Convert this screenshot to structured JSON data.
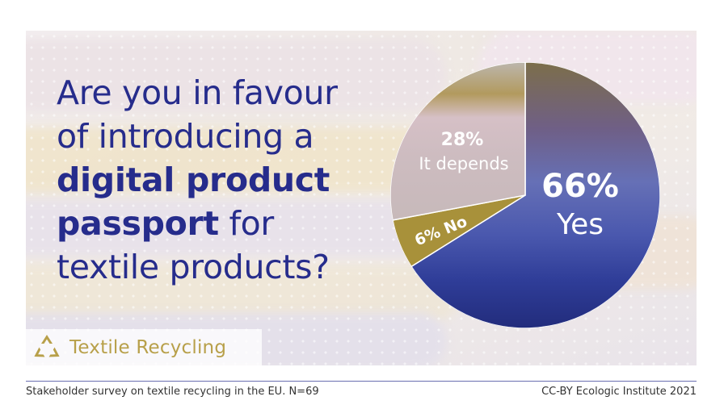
{
  "question": {
    "line1": "Are you in favour",
    "line2": "of introducing a",
    "line3_bold": "digital product",
    "line4_bold": "passport",
    "line4_rest": " for",
    "line5": "textile products?"
  },
  "brand": {
    "label": "Textile Recycling",
    "icon": "recycle-icon"
  },
  "footer": {
    "source": "Stakeholder survey on textile recycling in the EU. N=69",
    "credit": "CC-BY Ecologic Institute 2021"
  },
  "colors": {
    "title": "#262c8c",
    "brand": "#b8a04a",
    "rule": "#6a6fb0"
  },
  "chart_data": {
    "type": "pie",
    "start_angle_deg": 0,
    "direction": "clockwise",
    "slices": [
      {
        "label": "Yes",
        "value": 66,
        "display": "66%",
        "color": "#3a4aa8"
      },
      {
        "label": "No",
        "value": 6,
        "display": "6%",
        "color": "#a8913a"
      },
      {
        "label": "It depends",
        "value": 28,
        "display": "28%",
        "color": "#cfc3c6"
      }
    ]
  }
}
